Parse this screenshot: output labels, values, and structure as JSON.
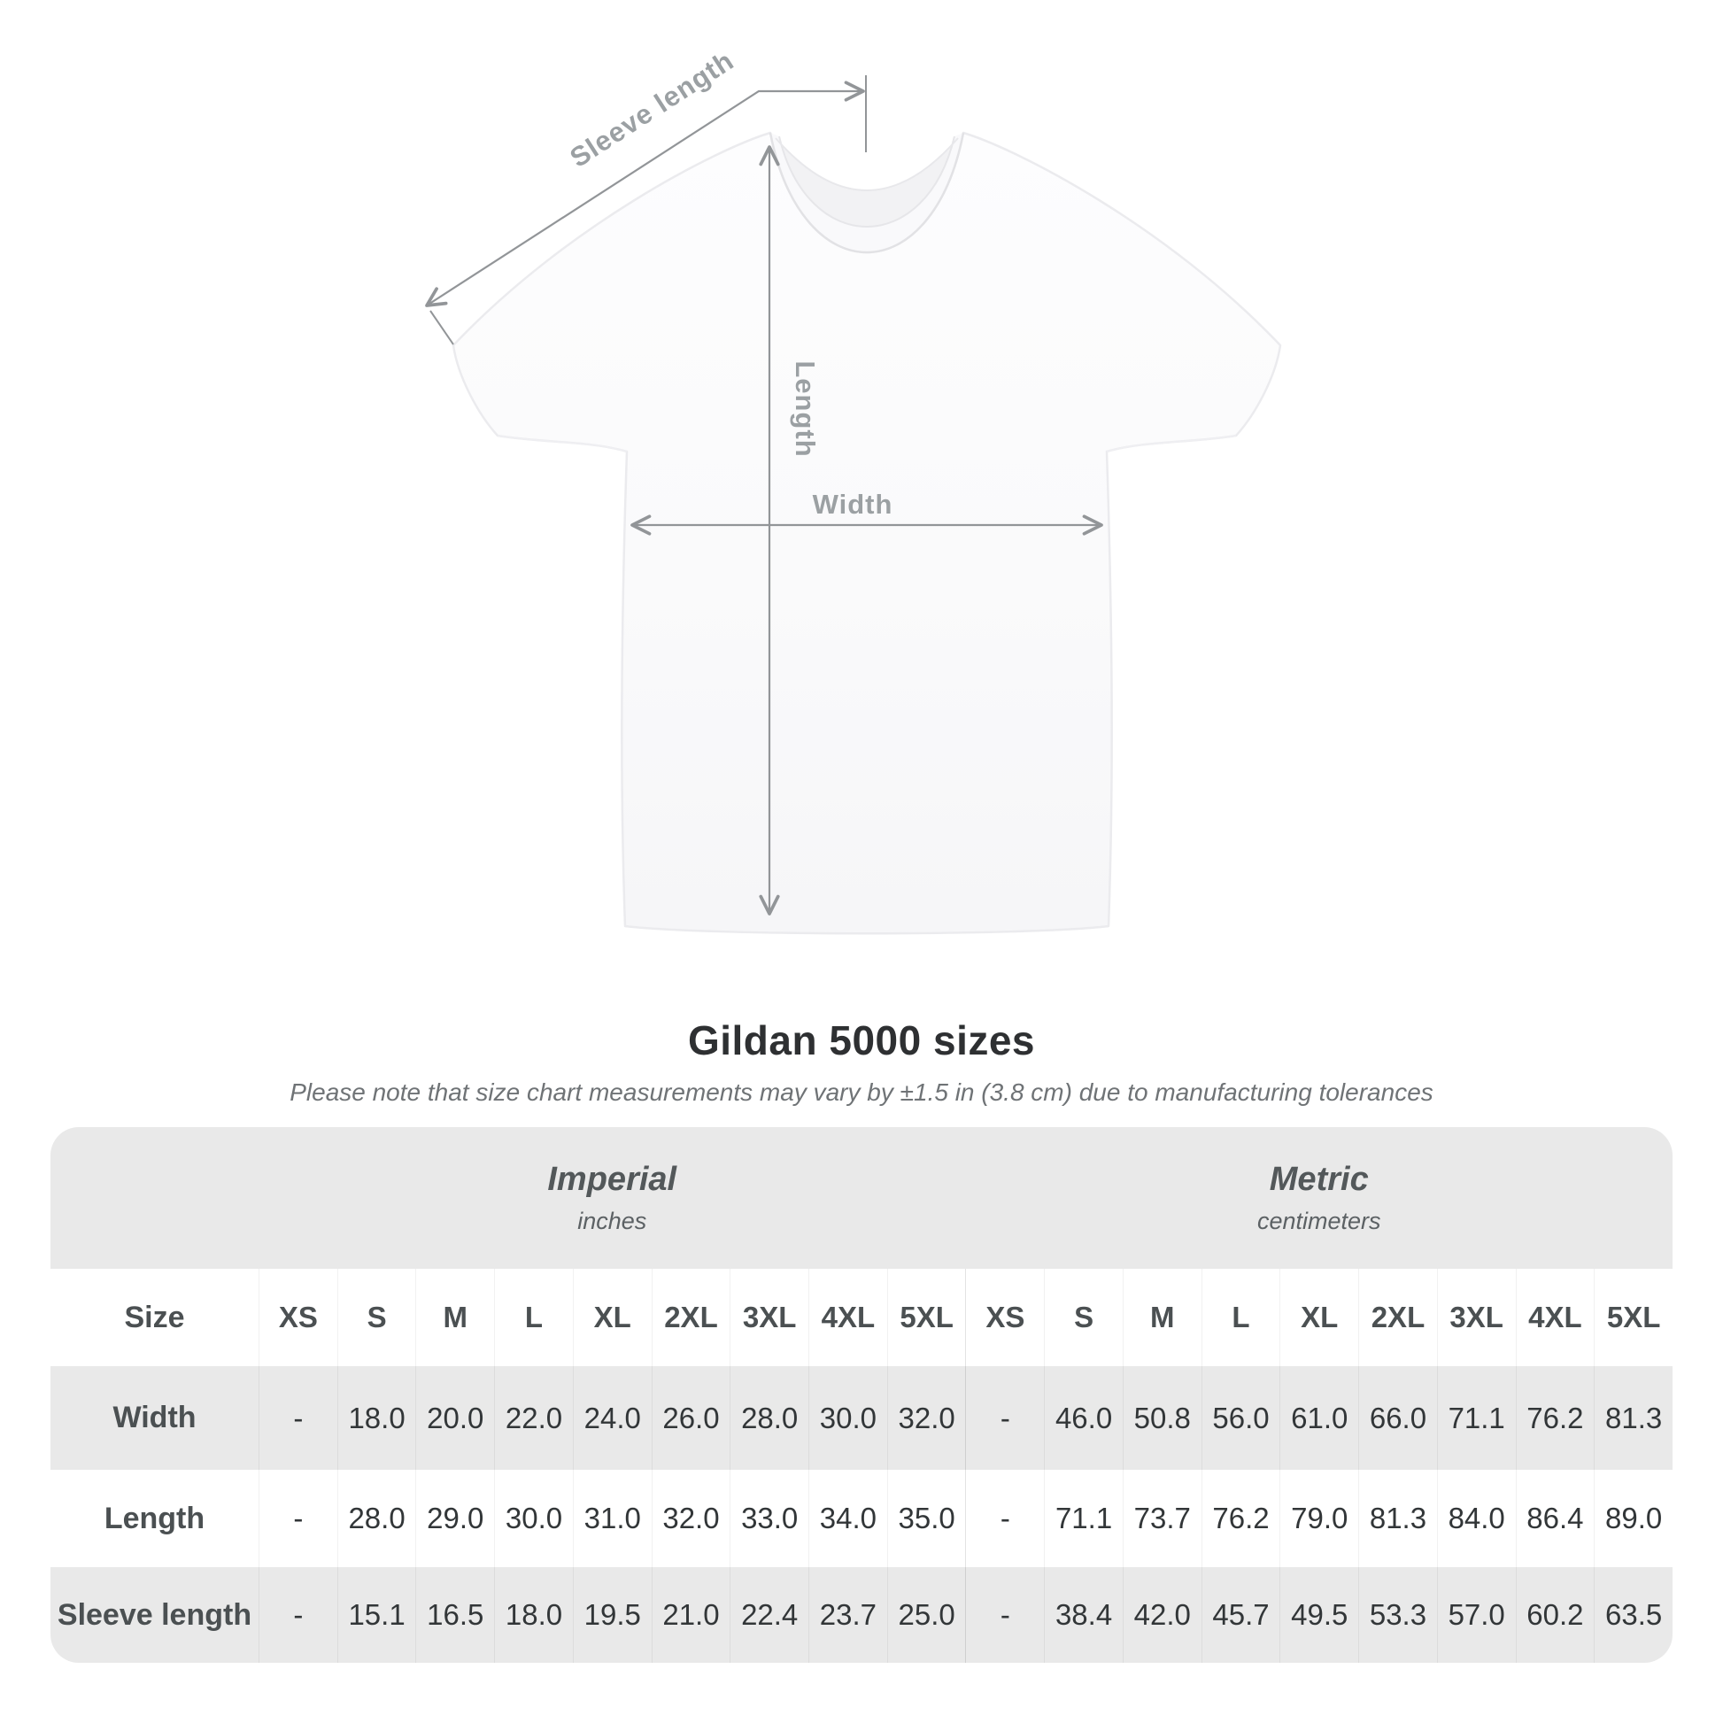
{
  "chart_data": {
    "type": "table",
    "title": "Gildan 5000 sizes",
    "note": "Please note that size chart measurements may vary by ±1.5 in (3.8 cm) due to manufacturing tolerances",
    "diagram_labels": {
      "sleeve_length": "Sleeve length",
      "length": "Length",
      "width": "Width"
    },
    "size_header_label": "Size",
    "sizes": [
      "XS",
      "S",
      "M",
      "L",
      "XL",
      "2XL",
      "3XL",
      "4XL",
      "5XL"
    ],
    "unit_groups": [
      {
        "name": "Imperial",
        "unit": "inches"
      },
      {
        "name": "Metric",
        "unit": "centimeters"
      }
    ],
    "rows": [
      {
        "label": "Width",
        "imperial": [
          "-",
          "18.0",
          "20.0",
          "22.0",
          "24.0",
          "26.0",
          "28.0",
          "30.0",
          "32.0"
        ],
        "metric": [
          "-",
          "46.0",
          "50.8",
          "56.0",
          "61.0",
          "66.0",
          "71.1",
          "76.2",
          "81.3"
        ]
      },
      {
        "label": "Length",
        "imperial": [
          "-",
          "28.0",
          "29.0",
          "30.0",
          "31.0",
          "32.0",
          "33.0",
          "34.0",
          "35.0"
        ],
        "metric": [
          "-",
          "71.1",
          "73.7",
          "76.2",
          "79.0",
          "81.3",
          "84.0",
          "86.4",
          "89.0"
        ]
      },
      {
        "label": "Sleeve length",
        "imperial": [
          "-",
          "15.1",
          "16.5",
          "18.0",
          "19.5",
          "21.0",
          "22.4",
          "23.7",
          "25.0"
        ],
        "metric": [
          "-",
          "38.4",
          "42.0",
          "45.7",
          "49.5",
          "53.3",
          "57.0",
          "60.2",
          "63.5"
        ]
      }
    ],
    "layout": {
      "grid": "off",
      "legend": "none"
    }
  },
  "colors": {
    "table_band": "#e9e9e9",
    "dimension_line": "#929598",
    "dimension_label": "#9ba0a3",
    "title_text": "#2e3032",
    "note_text": "#6f7376",
    "header_text": "#4b5052",
    "value_text": "#323638",
    "shirt_white": "#fbfbfc"
  }
}
